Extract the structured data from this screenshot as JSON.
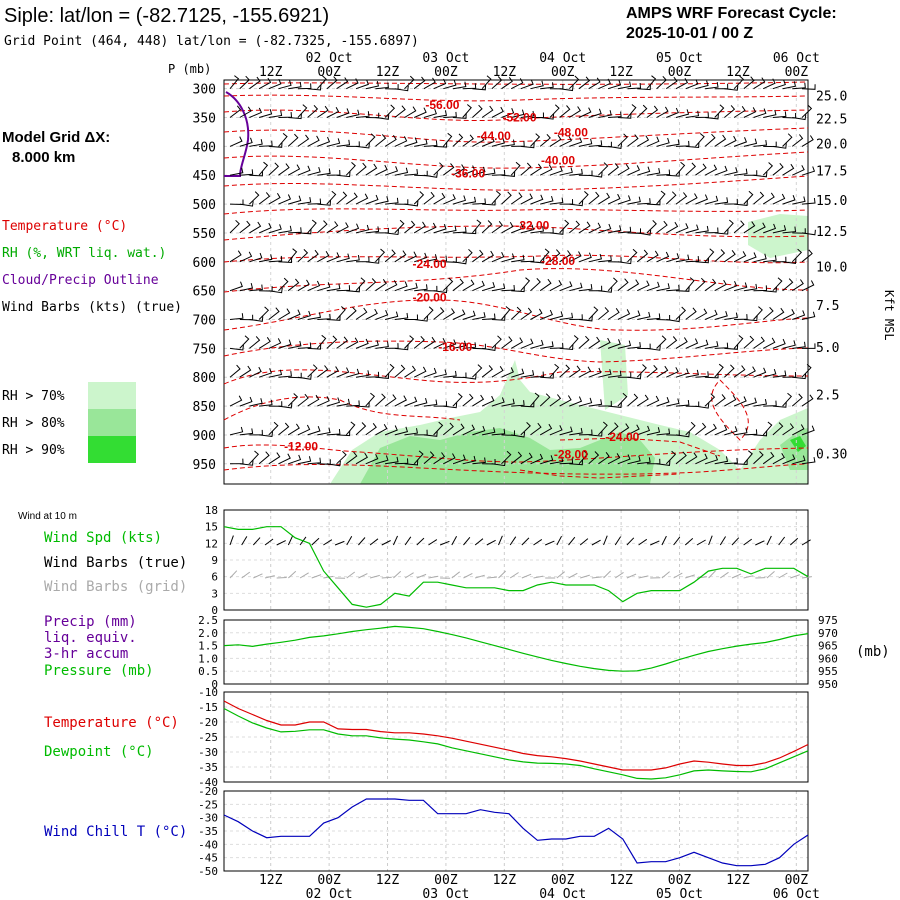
{
  "header": {
    "title": "Siple:  lat/lon = (-82.7125, -155.6921)",
    "subtitle": "Grid Point (464, 448) lat/lon = (-82.7325, -155.6897)",
    "cycle_line1": "AMPS WRF Forecast Cycle:",
    "cycle_line2": "2025-10-01 / 00  Z"
  },
  "time_axis": {
    "ticks": [
      "12Z",
      "00Z",
      "12Z",
      "00Z",
      "12Z",
      "00Z",
      "12Z",
      "00Z",
      "12Z",
      "00Z"
    ],
    "dates": [
      {
        "label": "02 Oct",
        "tick": 1
      },
      {
        "label": "03 Oct",
        "tick": 3
      },
      {
        "label": "04 Oct",
        "tick": 5
      },
      {
        "label": "05 Oct",
        "tick": 7
      },
      {
        "label": "06 Oct",
        "tick": 9
      }
    ]
  },
  "left_legend": {
    "model_grid_line1": "Model Grid ΔX:",
    "model_grid_line2": "8.000 km",
    "temperature": "Temperature (°C)",
    "rh": "RH (%, WRT liq. wat.)",
    "cloud": "Cloud/Precip Outline",
    "wind": "Wind Barbs (kts) (true)",
    "rh_levels": [
      {
        "label": "RH > 70%",
        "color": "#ccf5cc"
      },
      {
        "label": "RH > 80%",
        "color": "#99e699"
      },
      {
        "label": "RH > 90%",
        "color": "#33dd33"
      }
    ]
  },
  "colors": {
    "temperature": "#dd0000",
    "rh_text": "#00aa00",
    "cloud": "#660099",
    "wind_chill": "#0000bb",
    "gray_barb": "#aaaaaa",
    "wind_spd": "#00bb00"
  },
  "chart_data": [
    {
      "id": "profile",
      "type": "time-height cross-section",
      "y_axis_label": "P (mb)",
      "pressure_levels": [
        300,
        350,
        400,
        450,
        500,
        550,
        600,
        650,
        700,
        750,
        800,
        850,
        900,
        950
      ],
      "kft_label": "Kft MSL",
      "kft_ticks": [
        {
          "v": "25.0",
          "p": 312
        },
        {
          "v": "22.5",
          "p": 352
        },
        {
          "v": "20.0",
          "p": 395
        },
        {
          "v": "17.5",
          "p": 442
        },
        {
          "v": "15.0",
          "p": 493
        },
        {
          "v": "12.5",
          "p": 547
        },
        {
          "v": "10.0",
          "p": 608
        },
        {
          "v": "7.5",
          "p": 675
        },
        {
          "v": "5.0",
          "p": 748
        },
        {
          "v": "2.5",
          "p": 830
        },
        {
          "v": "0.30",
          "p": 932
        }
      ],
      "temperature_contours": [
        {
          "label": "-56.00",
          "t": 0.17,
          "p": 327
        },
        {
          "label": "-52.00",
          "t": 0.23,
          "p": 348
        },
        {
          "label": "-48.00",
          "t": 0.27,
          "p": 374
        },
        {
          "label": "-44.00",
          "t": 0.21,
          "p": 380
        },
        {
          "label": "-40.00",
          "t": 0.26,
          "p": 423
        },
        {
          "label": "-36.00",
          "t": 0.19,
          "p": 445
        },
        {
          "label": "-32.00",
          "t": 0.24,
          "p": 535
        },
        {
          "label": "-28.00",
          "t": 0.26,
          "p": 597
        },
        {
          "label": "-24.00",
          "t": 0.16,
          "p": 602
        },
        {
          "label": "-20.00",
          "t": 0.16,
          "p": 660
        },
        {
          "label": "-16.00",
          "t": 0.18,
          "p": 746
        },
        {
          "label": "-24.00",
          "t": 0.31,
          "p": 902
        },
        {
          "label": "-28.00",
          "t": 0.27,
          "p": 932
        },
        {
          "label": "-12.00",
          "t": 0.06,
          "p": 918
        }
      ]
    },
    {
      "id": "wind10m",
      "type": "line",
      "label": "Wind at 10 m",
      "series_labels": {
        "spd": "Wind Spd (kts)",
        "true": "Wind Barbs (true)",
        "grid": "Wind Barbs (grid)"
      },
      "y_ticks": [
        0,
        3,
        6,
        9,
        12,
        15,
        18
      ],
      "ylim": [
        0,
        18
      ],
      "wind_spd": [
        15,
        14.5,
        14.5,
        15,
        15,
        13,
        12,
        7,
        4,
        1,
        0.5,
        1,
        3,
        2.5,
        5,
        5,
        4.5,
        4,
        4,
        4,
        3.5,
        3.5,
        4.5,
        5,
        4.5,
        4.5,
        4.5,
        3.5,
        1.5,
        3,
        3.5,
        3.5,
        3.5,
        5,
        7,
        7.5,
        7.5,
        6.5,
        7.5,
        7.5,
        7.5,
        6
      ]
    },
    {
      "id": "precip_pressure",
      "type": "line",
      "labels": {
        "precip": "Precip (mm)",
        "liq": "liq. equiv.",
        "accum": "3-hr accum",
        "pressure": "Pressure (mb)"
      },
      "left_ticks": [
        "0",
        "0.5",
        "1.0",
        "1.5",
        "2.0",
        "2.5"
      ],
      "right_ticks": [
        950,
        955,
        960,
        965,
        970,
        975
      ],
      "right_unit": "(mb)",
      "ylim_pressure": [
        950,
        975
      ],
      "pressure": [
        965,
        965.3,
        964.7,
        965.6,
        966.3,
        967.1,
        968.2,
        968.8,
        969.6,
        970.5,
        971.2,
        971.8,
        972.5,
        972.1,
        971.6,
        970.5,
        969.3,
        968,
        966.5,
        965,
        963.5,
        962,
        960.6,
        959.2,
        958,
        956.9,
        956,
        955.3,
        955,
        955.1,
        956.2,
        957.8,
        959.6,
        961.2,
        962.7,
        963.8,
        964.8,
        965.6,
        966.2,
        967.4,
        968.8,
        969.7
      ]
    },
    {
      "id": "temp_dew",
      "type": "line",
      "labels": {
        "temp": "Temperature (°C)",
        "dew": "Dewpoint (°C)"
      },
      "y_ticks": [
        -10,
        -15,
        -20,
        -25,
        -30,
        -35,
        -40
      ],
      "ylim": [
        -40,
        -10
      ],
      "temperature": [
        -13,
        -15.5,
        -17.5,
        -19.5,
        -21,
        -21,
        -20,
        -20,
        -22.3,
        -22.5,
        -22.5,
        -23.2,
        -23.6,
        -23.6,
        -24,
        -24.6,
        -25.4,
        -26.4,
        -27.4,
        -28.4,
        -29.4,
        -30.5,
        -31.2,
        -31.6,
        -32.2,
        -33,
        -34,
        -35,
        -36,
        -36,
        -36,
        -35.3,
        -34,
        -33,
        -33.4,
        -34,
        -34.5,
        -34.5,
        -33.6,
        -32,
        -29.8,
        -27.5
      ],
      "dewpoint": [
        -15.5,
        -18,
        -20.3,
        -22,
        -23.3,
        -23.1,
        -22.6,
        -22.6,
        -24,
        -24.6,
        -24.6,
        -25.3,
        -25.7,
        -26,
        -26.6,
        -27.3,
        -28.6,
        -29.6,
        -30.6,
        -31.6,
        -32.6,
        -33.3,
        -33.7,
        -33.8,
        -34,
        -34.5,
        -35.6,
        -36.6,
        -37.6,
        -38.8,
        -39,
        -38.6,
        -37.6,
        -36.3,
        -36,
        -36.3,
        -36.5,
        -36.6,
        -35.6,
        -33.6,
        -31.6,
        -29.6
      ]
    },
    {
      "id": "wind_chill",
      "type": "line",
      "label": "Wind Chill T (°C)",
      "y_ticks": [
        -20,
        -25,
        -30,
        -35,
        -40,
        -45,
        -50
      ],
      "ylim": [
        -50,
        -20
      ],
      "wind_chill": [
        -29,
        -31.5,
        -35,
        -37.5,
        -37,
        -37,
        -37,
        -32,
        -30,
        -26,
        -23,
        -23,
        -23,
        -23.5,
        -23.5,
        -28.5,
        -28.5,
        -28.5,
        -27,
        -28,
        -28.5,
        -34,
        -38.5,
        -38,
        -38,
        -37,
        -37,
        -34,
        -38,
        -47,
        -46.5,
        -46.5,
        -45,
        -43,
        -45,
        -47,
        -48,
        -48,
        -47.5,
        -45,
        -40,
        -36.5
      ]
    }
  ]
}
